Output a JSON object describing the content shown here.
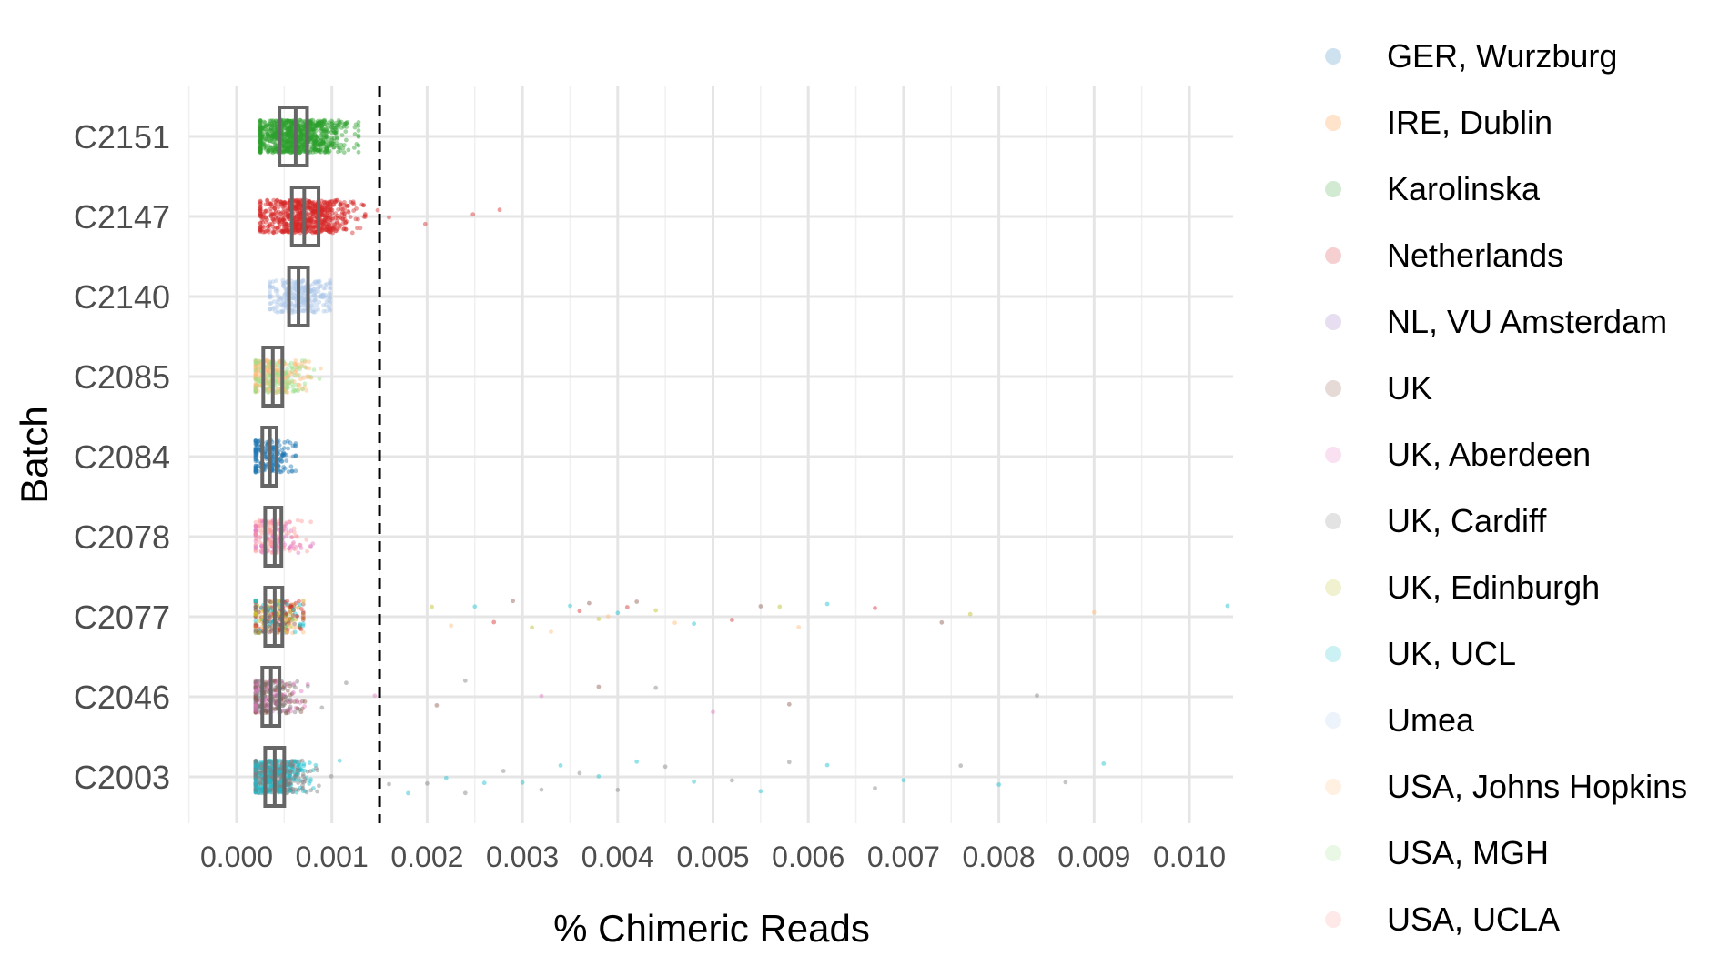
{
  "chart_data": {
    "type": "scatter",
    "subtype": "jittered strip plot with boxplots",
    "title": "",
    "xlabel": "% Chimeric Reads",
    "ylabel": "Batch",
    "xlim": [
      -0.0005,
      0.0105
    ],
    "xticks": [
      0.0,
      0.001,
      0.002,
      0.003,
      0.004,
      0.005,
      0.006,
      0.007,
      0.008,
      0.009,
      0.01
    ],
    "xtick_labels": [
      "0.000",
      "0.001",
      "0.002",
      "0.003",
      "0.004",
      "0.005",
      "0.006",
      "0.007",
      "0.008",
      "0.009",
      "0.010"
    ],
    "categories": [
      "C2151",
      "C2147",
      "C2140",
      "C2085",
      "C2084",
      "C2078",
      "C2077",
      "C2046",
      "C2003"
    ],
    "threshold_line": {
      "x": 0.0015,
      "style": "dashed",
      "color": "#000000"
    },
    "grid": true,
    "legend_position": "right",
    "legend": [
      {
        "label": "GER, Wurzburg",
        "color": "#1f77b4"
      },
      {
        "label": "IRE, Dublin",
        "color": "#ff7f0e"
      },
      {
        "label": "Karolinska",
        "color": "#2ca02c"
      },
      {
        "label": "Netherlands",
        "color": "#d62728"
      },
      {
        "label": "NL, VU Amsterdam",
        "color": "#9467bd"
      },
      {
        "label": "UK",
        "color": "#8c564b"
      },
      {
        "label": "UK, Aberdeen",
        "color": "#e377c2"
      },
      {
        "label": "UK, Cardiff",
        "color": "#7f7f7f"
      },
      {
        "label": "UK, Edinburgh",
        "color": "#bcbd22"
      },
      {
        "label": "UK, UCL",
        "color": "#17becf"
      },
      {
        "label": "Umea",
        "color": "#aec7e8"
      },
      {
        "label": "USA, Johns Hopkins",
        "color": "#ffbb78"
      },
      {
        "label": "USA, MGH",
        "color": "#98df8a"
      },
      {
        "label": "USA, UCLA",
        "color": "#ff9896"
      }
    ],
    "series": [
      {
        "batch": "C2151",
        "colors": [
          "#2ca02c"
        ],
        "median": 0.00062,
        "q1": 0.00045,
        "q3": 0.00074,
        "range": [
          0.00025,
          0.00128
        ],
        "n": 900,
        "outliers": []
      },
      {
        "batch": "C2147",
        "colors": [
          "#d62728"
        ],
        "median": 0.00071,
        "q1": 0.00058,
        "q3": 0.00086,
        "range": [
          0.00025,
          0.00135
        ],
        "n": 700,
        "outliers": [
          0.00148,
          0.0016,
          0.00198,
          0.00248,
          0.00276
        ]
      },
      {
        "batch": "C2140",
        "colors": [
          "#aec7e8"
        ],
        "median": 0.00065,
        "q1": 0.00055,
        "q3": 0.00075,
        "range": [
          0.00035,
          0.00098
        ],
        "n": 300,
        "outliers": []
      },
      {
        "batch": "C2085",
        "colors": [
          "#98df8a",
          "#ffbb78"
        ],
        "median": 0.00038,
        "q1": 0.00028,
        "q3": 0.00048,
        "range": [
          0.0002,
          0.00095
        ],
        "n": 350,
        "outliers": []
      },
      {
        "batch": "C2084",
        "colors": [
          "#1f77b4"
        ],
        "median": 0.00035,
        "q1": 0.00027,
        "q3": 0.00042,
        "range": [
          0.0002,
          0.00062
        ],
        "n": 200,
        "outliers": []
      },
      {
        "batch": "C2078",
        "colors": [
          "#e377c2",
          "#ff9896"
        ],
        "median": 0.0004,
        "q1": 0.0003,
        "q3": 0.00047,
        "range": [
          0.0002,
          0.0008
        ],
        "n": 200,
        "outliers": []
      },
      {
        "batch": "C2077",
        "colors": [
          "#8c564b",
          "#bcbd22",
          "#ffbb78",
          "#17becf",
          "#d62728"
        ],
        "median": 0.0004,
        "q1": 0.0003,
        "q3": 0.00048,
        "range": [
          0.0002,
          0.0007
        ],
        "n": 300,
        "outliers": [
          0.00205,
          0.00225,
          0.0025,
          0.0027,
          0.0029,
          0.0031,
          0.0033,
          0.0035,
          0.0036,
          0.0037,
          0.0038,
          0.0039,
          0.004,
          0.0041,
          0.0042,
          0.0044,
          0.0046,
          0.0048,
          0.0052,
          0.0055,
          0.0057,
          0.0059,
          0.0062,
          0.0067,
          0.0074,
          0.0077,
          0.009,
          0.0104
        ]
      },
      {
        "batch": "C2046",
        "colors": [
          "#8c564b",
          "#7f7f7f",
          "#e377c2"
        ],
        "median": 0.00036,
        "q1": 0.00027,
        "q3": 0.00045,
        "range": [
          0.0002,
          0.001
        ],
        "n": 300,
        "outliers": [
          0.00115,
          0.00145,
          0.0021,
          0.0024,
          0.0032,
          0.0038,
          0.0044,
          0.005,
          0.0058,
          0.0084
        ]
      },
      {
        "batch": "C2003",
        "colors": [
          "#17becf",
          "#7f7f7f"
        ],
        "median": 0.0004,
        "q1": 0.0003,
        "q3": 0.0005,
        "range": [
          0.0002,
          0.0013
        ],
        "n": 600,
        "outliers": [
          0.0016,
          0.0018,
          0.002,
          0.0022,
          0.0024,
          0.0026,
          0.0028,
          0.003,
          0.0032,
          0.0034,
          0.0036,
          0.0038,
          0.004,
          0.0042,
          0.0045,
          0.0048,
          0.0052,
          0.0055,
          0.0058,
          0.0062,
          0.0067,
          0.007,
          0.0076,
          0.008,
          0.0087,
          0.0091
        ]
      }
    ]
  }
}
